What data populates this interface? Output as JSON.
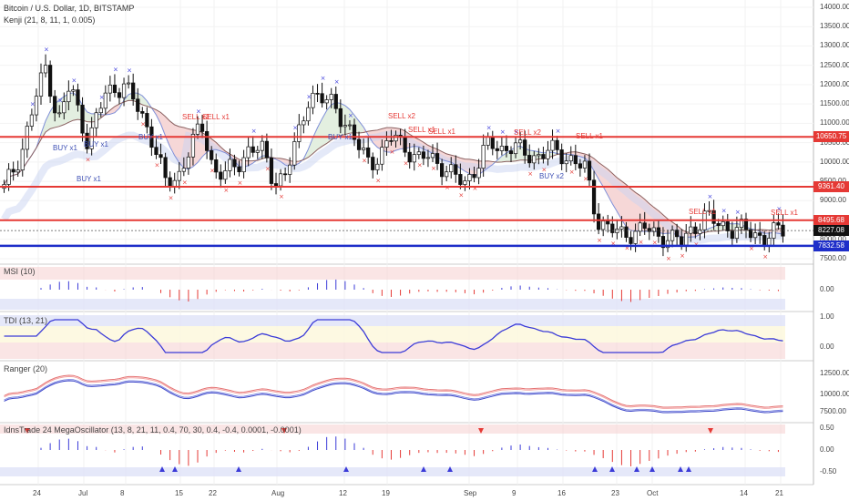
{
  "chart": {
    "title": "Bitcoin / U.S. Dollar, 1D, BITSTAMP",
    "indicator": "Kenji (21, 8, 11, 1, 0.005)"
  },
  "colors": {
    "support_red": "#e53935",
    "support_blue": "#1e2ec9",
    "band_blue": "#d8def6",
    "band_red": "#f5c2c2",
    "up_candle": "#ffffff",
    "down_candle": "#111111",
    "buy_label": "#3f51b5",
    "sell_label": "#e53935"
  },
  "price_axis": [
    "14000.00",
    "13500.00",
    "13000.00",
    "12500.00",
    "12000.00",
    "11500.00",
    "11000.00",
    "10500.00",
    "10000.00",
    "9500.00",
    "9000.00",
    "8500.00",
    "8000.00",
    "7500.00"
  ],
  "price_tags": [
    {
      "text": "10650.75",
      "kind": "red"
    },
    {
      "text": "9361.40",
      "kind": "red"
    },
    {
      "text": "8495.68",
      "kind": "red"
    },
    {
      "text": "8227.08",
      "kind": "black"
    },
    {
      "text": "7832.58",
      "kind": "blue"
    }
  ],
  "signals": {
    "buy": [
      "BUY x1",
      "BUY x1",
      "BUY x1",
      "BUY x1",
      "BUY x1",
      "BUY x2"
    ],
    "sell": [
      "SELL x1",
      "SELL x1",
      "SELL x2",
      "SELL x1",
      "SELL x1",
      "SELL x2",
      "SELL x1",
      "SELL x1",
      "SELL x1"
    ]
  },
  "panes": [
    {
      "name": "MSI (10)",
      "axis": [
        "0.00"
      ]
    },
    {
      "name": "TDI (13, 21)",
      "axis": [
        "1.00",
        "0.00"
      ]
    },
    {
      "name": "Ranger (20)",
      "axis": [
        "12500.00",
        "10000.00",
        "7500.00"
      ]
    },
    {
      "name": "IdnsTrade 24 MegaOscillator (13, 8, 21, 11, 0.4, 70, 30, 0.4, -0.4, 0.0001, -0.0001)",
      "axis": [
        "0.50",
        "0.00",
        "-0.50"
      ]
    }
  ],
  "time_axis": [
    "24",
    "Jul",
    "8",
    "15",
    "22",
    "Aug",
    "12",
    "19",
    "Sep",
    "9",
    "16",
    "23",
    "Oct",
    "14",
    "21"
  ]
}
